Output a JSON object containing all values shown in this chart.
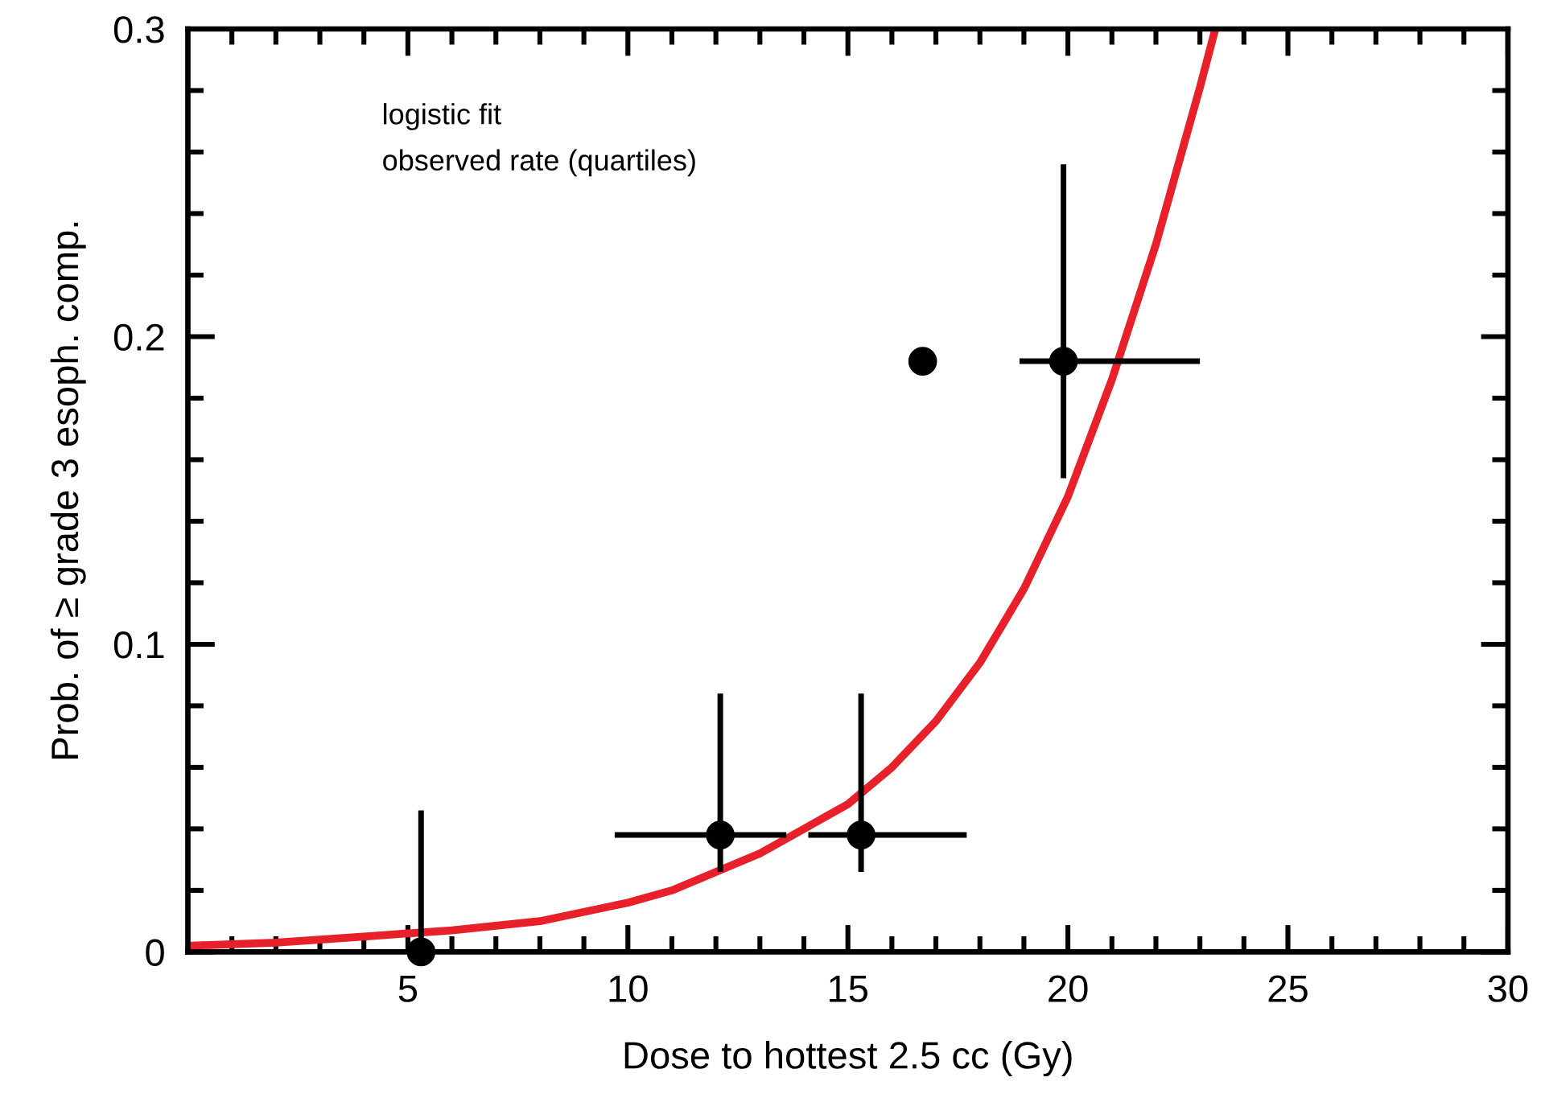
{
  "chart_data": {
    "type": "scatter",
    "xlabel": "Dose to hottest 2.5 cc (Gy)",
    "ylabel": "Prob. of ≥ grade 3 esoph. comp.",
    "annotations": [
      "logistic fit",
      "observed rate (quartiles)"
    ],
    "series": [
      {
        "type": "line",
        "color": "#e8202a",
        "line_style": "solid",
        "marker": "none",
        "x": [
          0,
          2,
          4,
          6,
          8,
          10,
          11,
          12,
          13,
          14,
          15,
          16,
          17,
          18,
          19,
          20,
          21,
          22,
          23,
          23.35
        ],
        "values": [
          0.002,
          0.003,
          0.005,
          0.007,
          0.01,
          0.016,
          0.02,
          0.026,
          0.032,
          0.04,
          0.048,
          0.06,
          0.075,
          0.094,
          0.118,
          0.148,
          0.186,
          0.23,
          0.281,
          0.3
        ]
      },
      {
        "color": "#000000",
        "marker": "circle",
        "x": [
          5.3,
          12.1,
          15.3,
          16.7,
          19.9
        ],
        "values": [
          0.0,
          0.038,
          0.038,
          0.192,
          0.192
        ],
        "errors": [
          [
            0,
            0.046
          ],
          [
            0.026,
            0.084
          ],
          [
            0.026,
            0.084
          ],
          null,
          [
            0.154,
            0.256
          ]
        ],
        "xerrors": [
          null,
          [
            9.7,
            13.6
          ],
          [
            14.1,
            17.7
          ],
          null,
          [
            18.9,
            23.0
          ]
        ]
      }
    ],
    "xlim": [
      0,
      30
    ],
    "ylim": [
      0,
      0.3
    ],
    "xticks": [
      {
        "value": 1,
        "label": null
      },
      {
        "value": 2,
        "label": null
      },
      {
        "value": 3,
        "label": null
      },
      {
        "value": 4,
        "label": null
      },
      5,
      {
        "value": 6,
        "label": null
      },
      {
        "value": 7,
        "label": null
      },
      {
        "value": 8,
        "label": null
      },
      {
        "value": 9,
        "label": null
      },
      10,
      {
        "value": 11,
        "label": null
      },
      {
        "value": 12,
        "label": null
      },
      {
        "value": 13,
        "label": null
      },
      {
        "value": 14,
        "label": null
      },
      15,
      {
        "value": 16,
        "label": null
      },
      {
        "value": 17,
        "label": null
      },
      {
        "value": 18,
        "label": null
      },
      {
        "value": 19,
        "label": null
      },
      20,
      {
        "value": 21,
        "label": null
      },
      {
        "value": 22,
        "label": null
      },
      {
        "value": 23,
        "label": null
      },
      {
        "value": 24,
        "label": null
      },
      25,
      {
        "value": 26,
        "label": null
      },
      {
        "value": 27,
        "label": null
      },
      {
        "value": 28,
        "label": null
      },
      {
        "value": 29,
        "label": null
      },
      30
    ],
    "yticks": [
      0,
      {
        "value": 0.02,
        "label": null
      },
      {
        "value": 0.04,
        "label": null
      },
      {
        "value": 0.06,
        "label": null
      },
      {
        "value": 0.08,
        "label": null
      },
      0.1,
      {
        "value": 0.12,
        "label": null
      },
      {
        "value": 0.14,
        "label": null
      },
      {
        "value": 0.16,
        "label": null
      },
      {
        "value": 0.18,
        "label": null
      },
      0.2,
      {
        "value": 0.22,
        "label": null
      },
      {
        "value": 0.24,
        "label": null
      },
      {
        "value": 0.26,
        "label": null
      },
      {
        "value": 0.28,
        "label": null
      },
      0.3
    ],
    "grid": false
  }
}
